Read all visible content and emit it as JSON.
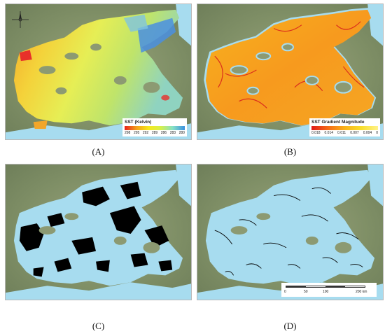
{
  "panels": [
    {
      "id": "A",
      "caption": "(A)"
    },
    {
      "id": "B",
      "caption": "(B)"
    },
    {
      "id": "C",
      "caption": "(C)"
    },
    {
      "id": "D",
      "caption": "(D)"
    }
  ],
  "legend_a": {
    "title": "SST (Kelvin)",
    "ticks": [
      "298",
      "295",
      "292",
      "289",
      "286",
      "283",
      "280"
    ]
  },
  "legend_b": {
    "title": "SST Gradient Magnitude",
    "ticks": [
      "0.018",
      "0.014",
      "0.011",
      "0.007",
      "0.004",
      "0"
    ]
  },
  "scale_bar": {
    "ticks": [
      "0",
      "50",
      "100",
      "200 km"
    ]
  },
  "colors": {
    "water": "#a7dcef",
    "land": "#8c9a72",
    "front": "#000000"
  },
  "icons": [
    "compass-rose-icon"
  ]
}
